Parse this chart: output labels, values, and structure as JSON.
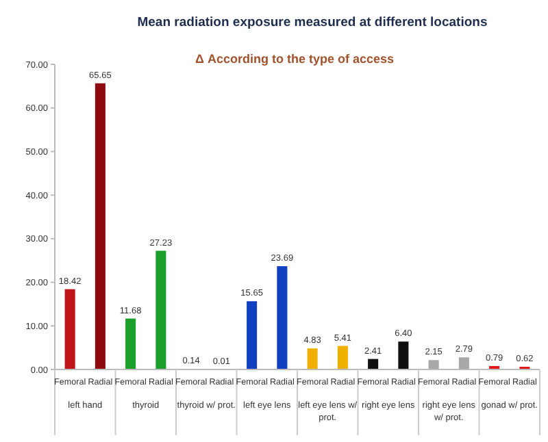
{
  "chart_data": {
    "type": "bar",
    "title": "Mean radiation exposure measured at different locations",
    "subtitle": "Δ According to the type of access",
    "categories": [
      "left hand",
      "thyroid",
      "thyroid w/ prot.",
      "left eye lens",
      "left eye lens w/ prot.",
      "right eye lens",
      "right eye lens w/ prot.",
      "gonad w/ prot."
    ],
    "series": [
      {
        "name": "Femoral",
        "colors": [
          "#c0141a",
          "#1aa02a",
          "#c03030",
          "#1040c0",
          "#f0b000",
          "#101010",
          "#a8a8a8",
          "#e01818"
        ],
        "values": [
          18.42,
          11.68,
          0.14,
          15.65,
          4.83,
          2.41,
          2.15,
          0.79
        ],
        "value_labels": [
          "18.42",
          "11.68",
          "0.14",
          "15.65",
          "4.83",
          "2.41",
          "2.15",
          "0.79"
        ]
      },
      {
        "name": "Radial",
        "colors": [
          "#8e0a10",
          "#1aa02a",
          "#c03030",
          "#1040c0",
          "#f0b000",
          "#101010",
          "#a8a8a8",
          "#e01818"
        ],
        "values": [
          65.65,
          27.23,
          0.01,
          23.69,
          5.41,
          6.4,
          2.79,
          0.62
        ],
        "value_labels": [
          "65.65",
          "27.23",
          "0.01",
          "23.69",
          "5.41",
          "6.40",
          "2.79",
          "0.62"
        ]
      }
    ],
    "ylim": [
      0,
      70
    ],
    "yticks": [
      {
        "value": 0,
        "label": "0.00"
      },
      {
        "value": 10,
        "label": "10.00"
      },
      {
        "value": 20,
        "label": "20.00"
      },
      {
        "value": 30,
        "label": "30.00"
      },
      {
        "value": 40,
        "label": "40.00"
      },
      {
        "value": 50,
        "label": "50.00"
      },
      {
        "value": 60,
        "label": "60.00"
      },
      {
        "value": 70,
        "label": "70.00"
      }
    ],
    "grid": false
  }
}
